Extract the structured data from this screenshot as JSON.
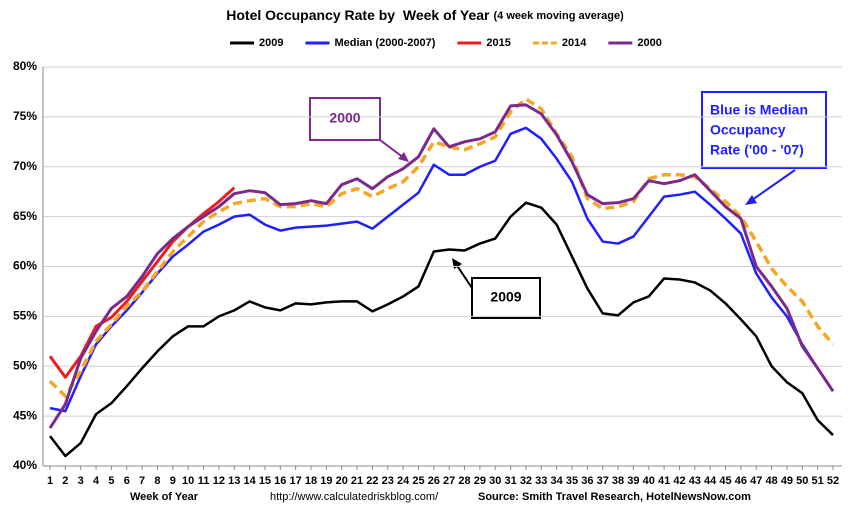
{
  "chart_data": {
    "type": "line",
    "title": "Hotel Occupancy Rate by  Week of Year",
    "subtitle": "(4 week moving average)",
    "x_label": "Week of Year",
    "source_url": "http://www.calculatedriskblog.com/",
    "source": "Source: Smith Travel Research, HotelNewsNow.com",
    "categories": [
      1,
      2,
      3,
      4,
      5,
      6,
      7,
      8,
      9,
      10,
      11,
      12,
      13,
      14,
      15,
      16,
      17,
      18,
      19,
      20,
      21,
      22,
      23,
      24,
      25,
      26,
      27,
      28,
      29,
      30,
      31,
      32,
      33,
      34,
      35,
      36,
      37,
      38,
      39,
      40,
      41,
      42,
      43,
      44,
      45,
      46,
      47,
      48,
      49,
      50,
      51,
      52
    ],
    "ylim": [
      40,
      80
    ],
    "yticks": [
      {
        "value": 40,
        "label": "40%"
      },
      {
        "value": 45,
        "label": "45%"
      },
      {
        "value": 50,
        "label": "50%"
      },
      {
        "value": 55,
        "label": "55%"
      },
      {
        "value": 60,
        "label": "60%"
      },
      {
        "value": 65,
        "label": "65%"
      },
      {
        "value": 70,
        "label": "70%"
      },
      {
        "value": 75,
        "label": "75%"
      },
      {
        "value": 80,
        "label": "80%"
      }
    ],
    "grid": true,
    "legend": "top",
    "series": [
      {
        "name": "2009",
        "color": "#000000",
        "values": [
          43,
          41,
          42.3,
          45.2,
          46.3,
          48,
          49.8,
          51.5,
          53,
          54,
          54,
          55,
          55.6,
          56.5,
          55.9,
          55.6,
          56.3,
          56.2,
          56.4,
          56.5,
          56.5,
          55.5,
          56.2,
          57,
          58,
          61.5,
          61.7,
          61.6,
          62.3,
          62.8,
          65,
          66.4,
          65.9,
          64.2,
          61,
          57.8,
          55.3,
          55.1,
          56.4,
          57,
          58.8,
          58.7,
          58.4,
          57.6,
          56.3,
          54.7,
          53,
          50,
          48.4,
          47.3,
          44.6,
          43.1
        ]
      },
      {
        "name": "Median (2000-2007)",
        "color": "#1f1fff",
        "values": [
          45.8,
          45.5,
          49,
          52.2,
          54,
          55.6,
          57.4,
          59.3,
          61,
          62.2,
          63.5,
          64.2,
          65,
          65.2,
          64.2,
          63.6,
          63.9,
          64,
          64.1,
          64.3,
          64.5,
          63.8,
          65,
          66.2,
          67.4,
          70.2,
          69.2,
          69.2,
          70,
          70.6,
          73.3,
          73.9,
          72.8,
          70.8,
          68.5,
          64.8,
          62.5,
          62.3,
          63,
          65,
          67,
          67.2,
          67.5,
          66.2,
          64.8,
          63.3,
          59.3,
          56.9,
          55,
          52.2,
          49.8,
          47.5
        ]
      },
      {
        "name": "2015",
        "color": "#ee1c1c",
        "values": [
          51,
          48.9,
          51,
          54,
          54.9,
          56.5,
          58.5,
          60.5,
          62.5,
          64,
          65.3,
          66.5,
          67.9,
          null,
          null,
          null,
          null,
          null,
          null,
          null,
          null,
          null,
          null,
          null,
          null,
          null,
          null,
          null,
          null,
          null,
          null,
          null,
          null,
          null,
          null,
          null,
          null,
          null,
          null,
          null,
          null,
          null,
          null,
          null,
          null,
          null,
          null,
          null,
          null,
          null,
          null,
          null
        ]
      },
      {
        "name": "2014",
        "color": "#f5a623",
        "dashed": true,
        "values": [
          48.5,
          47,
          49.5,
          52.5,
          54.2,
          56,
          57.5,
          59.5,
          61.5,
          63,
          64.5,
          65.5,
          66.3,
          66.6,
          66.8,
          66,
          66,
          66.3,
          66,
          67.3,
          67.8,
          67,
          67.8,
          68.5,
          70,
          72.5,
          72,
          71.7,
          72.3,
          73,
          75.5,
          76.8,
          75.8,
          73.3,
          71,
          66.8,
          65.8,
          66,
          66.5,
          68.8,
          69.2,
          69.2,
          69,
          67.8,
          66.5,
          65,
          62.5,
          59.8,
          58,
          56.5,
          54,
          52.2
        ]
      },
      {
        "name": "2000",
        "color": "#7b2a8c",
        "values": [
          43.8,
          46.2,
          50.8,
          53.5,
          55.8,
          57,
          59,
          61.3,
          62.8,
          64,
          65,
          66,
          67.3,
          67.6,
          67.4,
          66.2,
          66.3,
          66.6,
          66.3,
          68.2,
          68.8,
          67.8,
          69,
          69.8,
          71,
          73.8,
          72,
          72.5,
          72.8,
          73.5,
          76.1,
          76.2,
          75.3,
          73.2,
          70.5,
          67.2,
          66.3,
          66.4,
          66.8,
          68.6,
          68.3,
          68.6,
          69.2,
          67.6,
          66,
          64.8,
          60,
          58,
          55.8,
          52,
          49.8,
          47.5
        ]
      }
    ],
    "annotations": [
      {
        "text": [
          "2000"
        ],
        "color": "#7b2a8c"
      },
      {
        "text": [
          "2009"
        ],
        "color": "#000000"
      },
      {
        "text": [
          "Blue is Median",
          "Occupancy",
          "Rate ('00 - '07)"
        ],
        "color": "#1f1fff"
      }
    ]
  }
}
